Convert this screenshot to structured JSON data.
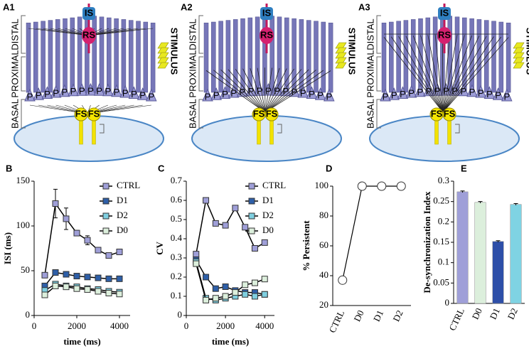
{
  "diagram": {
    "panels": [
      "A1",
      "A2",
      "A3"
    ],
    "labels": {
      "distal": "DISTAL",
      "proximal": "PROXIMAL",
      "basal": "BASAL",
      "stimulus": "STIMULUS",
      "is": "IS",
      "rs": "RS",
      "fs": "FS",
      "p": "P"
    }
  },
  "chart_data": [
    {
      "type": "line",
      "panel": "B",
      "xlabel": "time (ms)",
      "ylabel": "ISI (ms)",
      "x": [
        500,
        1000,
        1500,
        2000,
        2500,
        3000,
        3500,
        4000
      ],
      "xlim": [
        0,
        4500
      ],
      "xticks": [
        0,
        2000,
        4000
      ],
      "ylim": [
        0,
        150
      ],
      "yticks": [
        0,
        50,
        100,
        150
      ],
      "legend": "upper right",
      "series": [
        {
          "name": "CTRL",
          "color": "#9f9fd8",
          "values": [
            45,
            125,
            108,
            92,
            84,
            73,
            67,
            71
          ],
          "errors": [
            2,
            16,
            12,
            3,
            5,
            3,
            2,
            3
          ]
        },
        {
          "name": "D1",
          "color": "#2e5fa8",
          "values": [
            33,
            48,
            46,
            44,
            43,
            42,
            41,
            41
          ]
        },
        {
          "name": "D2",
          "color": "#7fcfe0",
          "values": [
            28,
            35,
            33,
            32,
            30,
            29,
            27,
            26
          ]
        },
        {
          "name": "D0",
          "color": "#dcefdc",
          "values": [
            23,
            33,
            32,
            30,
            29,
            27,
            25,
            24
          ]
        }
      ]
    },
    {
      "type": "line",
      "panel": "C",
      "xlabel": "time (ms)",
      "ylabel": "CV",
      "x": [
        500,
        1000,
        1500,
        2000,
        2500,
        3000,
        3500,
        4000
      ],
      "xlim": [
        0,
        4500
      ],
      "xticks": [
        0,
        2000,
        4000
      ],
      "ylim": [
        0,
        0.7
      ],
      "yticks": [
        0,
        0.1,
        0.2,
        0.3,
        0.4,
        0.5,
        0.6,
        0.7
      ],
      "legend": "upper right",
      "series": [
        {
          "name": "CTRL",
          "color": "#9f9fd8",
          "values": [
            0.32,
            0.6,
            0.48,
            0.47,
            0.56,
            0.46,
            0.35,
            0.38
          ]
        },
        {
          "name": "D1",
          "color": "#2e5fa8",
          "values": [
            0.29,
            0.2,
            0.14,
            0.15,
            0.13,
            0.12,
            0.12,
            0.11
          ]
        },
        {
          "name": "D2",
          "color": "#7fcfe0",
          "values": [
            0.28,
            0.09,
            0.08,
            0.09,
            0.1,
            0.11,
            0.1,
            0.11
          ]
        },
        {
          "name": "D0",
          "color": "#dcefdc",
          "values": [
            0.27,
            0.08,
            0.09,
            0.1,
            0.12,
            0.16,
            0.17,
            0.19
          ]
        }
      ]
    },
    {
      "type": "line",
      "panel": "D",
      "ylabel": "% Persistent",
      "categories": [
        "CTRL",
        "D0",
        "D1",
        "D2"
      ],
      "values": [
        37,
        100,
        100,
        100
      ],
      "color": "#000000",
      "ylim": [
        20,
        100
      ],
      "yticks": [
        20,
        40,
        60,
        80,
        100
      ]
    },
    {
      "type": "bar",
      "panel": "E",
      "ylabel": "De-synchronization Index",
      "categories": [
        "CTRL",
        "D0",
        "D1",
        "D2"
      ],
      "values": [
        0.274,
        0.248,
        0.152,
        0.243
      ],
      "errors": [
        0.002,
        0.002,
        0.002,
        0.002
      ],
      "colors": [
        "#9f9fd8",
        "#dcefdc",
        "#2e4fa8",
        "#7fd3e3"
      ],
      "ylim": [
        0,
        0.3
      ],
      "yticks": [
        0,
        0.05,
        0.1,
        0.15,
        0.2,
        0.25,
        0.3
      ]
    }
  ]
}
